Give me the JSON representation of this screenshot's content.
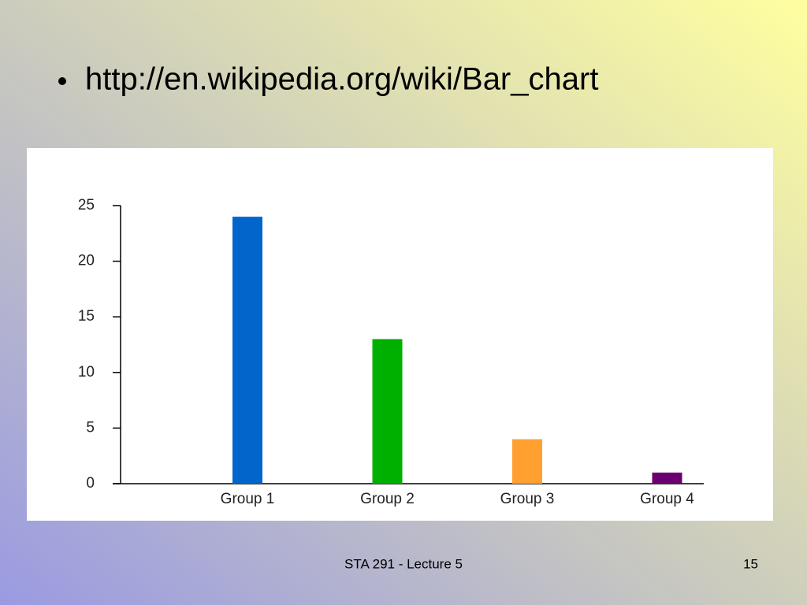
{
  "slide": {
    "bullet": "http://en.wikipedia.org/wiki/Bar_chart",
    "footer": "STA 291 - Lecture 5",
    "page_number": "15"
  },
  "chart_data": {
    "type": "bar",
    "categories": [
      "Group 1",
      "Group 2",
      "Group 3",
      "Group 4"
    ],
    "values": [
      24,
      13,
      4,
      1
    ],
    "colors": [
      "#0066cc",
      "#00b000",
      "#ffa030",
      "#6b0070"
    ],
    "ylim": [
      0,
      25
    ],
    "yticks": [
      0,
      5,
      10,
      15,
      20,
      25
    ],
    "grid": false
  }
}
